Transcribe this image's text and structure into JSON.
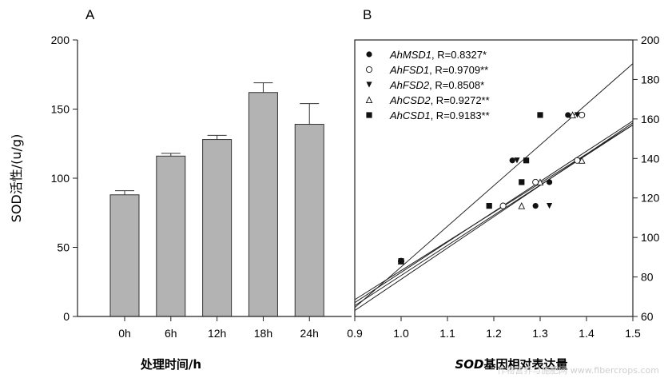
{
  "watermark": "作物营养与施肥网 www.fibercrops.com",
  "chart_data": [
    {
      "panel_label": "A",
      "type": "bar",
      "ylabel": "SOD活性/(u/g)",
      "xlabel": "处理时间/h",
      "categories": [
        "0h",
        "6h",
        "12h",
        "18h",
        "24h"
      ],
      "values": [
        88,
        116,
        128,
        162,
        139
      ],
      "errors": [
        3,
        2,
        3,
        7,
        15
      ],
      "ylim": [
        0,
        200
      ],
      "yticks": [
        0,
        50,
        100,
        150,
        200
      ],
      "bar_color": "#b3b3b3"
    },
    {
      "panel_label": "B",
      "type": "scatter",
      "xlabel_italic": "SOD",
      "xlabel_rest": "基因相对表达量",
      "xlim": [
        0.9,
        1.5
      ],
      "xticks": [
        0.9,
        1.0,
        1.1,
        1.2,
        1.3,
        1.4,
        1.5
      ],
      "xtick_labels": [
        "0.9",
        "1.0",
        "1.1",
        "1.2",
        "1.3",
        "1.4",
        "1.5"
      ],
      "ylim": [
        60,
        200
      ],
      "yticks": [
        60,
        80,
        100,
        120,
        140,
        160,
        180,
        200
      ],
      "legend_position": "top-left",
      "series": [
        {
          "name": "AhMSD1",
          "r_text": ", R=0.8327*",
          "marker": "filled-circle",
          "points": [
            [
              1.0,
              88
            ],
            [
              1.24,
              139
            ],
            [
              1.29,
              116
            ],
            [
              1.32,
              128
            ],
            [
              1.36,
              162
            ]
          ],
          "line": [
            [
              0.9,
              65.5
            ],
            [
              1.5,
              157
            ]
          ]
        },
        {
          "name": "AhFSD1",
          "r_text": ", R=0.9709**",
          "marker": "open-circle",
          "points": [
            [
              1.0,
              88
            ],
            [
              1.22,
              116
            ],
            [
              1.29,
              128
            ],
            [
              1.38,
              139
            ],
            [
              1.39,
              162
            ]
          ],
          "line": [
            [
              0.9,
              64.5
            ],
            [
              1.5,
              188
            ]
          ]
        },
        {
          "name": "AhFSD2",
          "r_text": ", R=0.8508*",
          "marker": "filled-triangle-down",
          "points": [
            [
              1.0,
              88
            ],
            [
              1.25,
              139
            ],
            [
              1.26,
              128
            ],
            [
              1.32,
              116
            ],
            [
              1.38,
              162
            ]
          ],
          "line": [
            [
              0.9,
              63
            ],
            [
              1.5,
              158
            ]
          ]
        },
        {
          "name": "AhCSD2",
          "r_text": ", R=0.9272**",
          "marker": "open-triangle-up",
          "points": [
            [
              1.0,
              88
            ],
            [
              1.26,
              116
            ],
            [
              1.3,
              128
            ],
            [
              1.37,
              162
            ],
            [
              1.39,
              139
            ]
          ],
          "line": [
            [
              0.9,
              68.5
            ],
            [
              1.5,
              157
            ]
          ]
        },
        {
          "name": "AhCSD1",
          "r_text": ", R=0.9183**",
          "marker": "filled-square",
          "points": [
            [
              1.0,
              88
            ],
            [
              1.19,
              116
            ],
            [
              1.26,
              128
            ],
            [
              1.27,
              139
            ],
            [
              1.3,
              162
            ]
          ],
          "line": [
            [
              0.9,
              67
            ],
            [
              1.5,
              159
            ]
          ]
        }
      ]
    }
  ]
}
